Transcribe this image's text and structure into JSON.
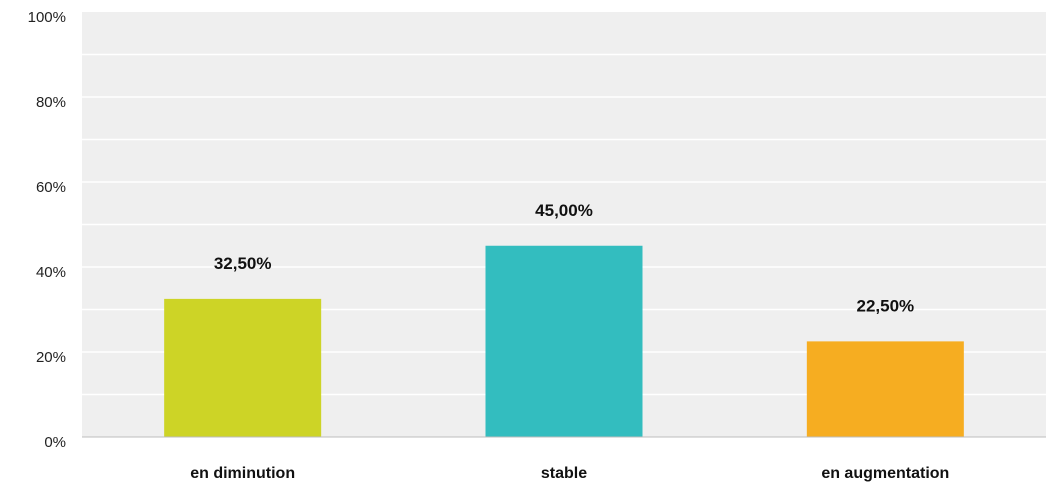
{
  "chart_data": {
    "type": "bar",
    "categories": [
      "en diminution",
      "stable",
      "en augmentation"
    ],
    "values": [
      32.5,
      45.0,
      22.5
    ],
    "value_labels": [
      "32,50%",
      "45,00%",
      "22,50%"
    ],
    "colors": [
      "#cdd426",
      "#33bdbf",
      "#f6ad21"
    ],
    "ylim": [
      0,
      100
    ],
    "yticks": [
      0,
      20,
      40,
      60,
      80,
      100
    ],
    "ytick_labels": [
      "0%",
      "20%",
      "40%",
      "60%",
      "80%",
      "100%"
    ],
    "grid": true,
    "background": "#efefef",
    "title": "",
    "xlabel": "",
    "ylabel": ""
  }
}
